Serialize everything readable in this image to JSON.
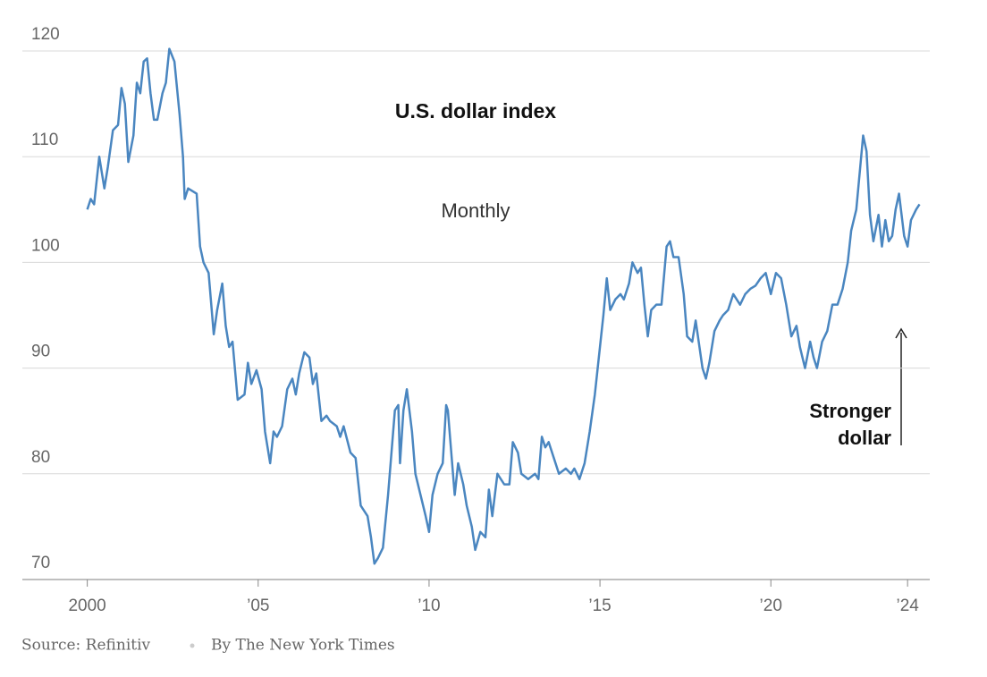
{
  "chart_data": {
    "type": "line",
    "title": "U.S. dollar index",
    "subtitle": "Monthly",
    "annotation": "Stronger\ndollar",
    "source": "Source: Refinitiv",
    "credit": "By The New York Times",
    "x": [
      2000.0,
      2000.1,
      2000.2,
      2000.35,
      2000.5,
      2000.6,
      2000.75,
      2000.9,
      2001.0,
      2001.1,
      2001.2,
      2001.35,
      2001.45,
      2001.55,
      2001.65,
      2001.75,
      2001.85,
      2001.95,
      2002.05,
      2002.2,
      2002.3,
      2002.4,
      2002.55,
      2002.7,
      2002.8,
      2002.85,
      2002.95,
      2003.2,
      2003.3,
      2003.4,
      2003.55,
      2003.7,
      2003.8,
      2003.95,
      2004.05,
      2004.15,
      2004.25,
      2004.4,
      2004.6,
      2004.7,
      2004.8,
      2004.95,
      2005.1,
      2005.2,
      2005.35,
      2005.45,
      2005.55,
      2005.7,
      2005.85,
      2006.0,
      2006.1,
      2006.2,
      2006.35,
      2006.5,
      2006.6,
      2006.7,
      2006.85,
      2007.0,
      2007.1,
      2007.3,
      2007.4,
      2007.5,
      2007.7,
      2007.85,
      2008.0,
      2008.2,
      2008.3,
      2008.4,
      2008.5,
      2008.65,
      2008.8,
      2008.9,
      2009.0,
      2009.1,
      2009.15,
      2009.25,
      2009.35,
      2009.5,
      2009.6,
      2009.75,
      2009.9,
      2010.0,
      2010.1,
      2010.25,
      2010.4,
      2010.5,
      2010.55,
      2010.65,
      2010.75,
      2010.85,
      2011.0,
      2011.1,
      2011.25,
      2011.35,
      2011.5,
      2011.65,
      2011.75,
      2011.85,
      2012.0,
      2012.2,
      2012.35,
      2012.45,
      2012.6,
      2012.7,
      2012.9,
      2013.1,
      2013.2,
      2013.3,
      2013.4,
      2013.5,
      2013.65,
      2013.8,
      2014.0,
      2014.15,
      2014.25,
      2014.4,
      2014.55,
      2014.7,
      2014.85,
      2015.0,
      2015.1,
      2015.2,
      2015.3,
      2015.45,
      2015.6,
      2015.7,
      2015.85,
      2015.95,
      2016.1,
      2016.2,
      2016.3,
      2016.4,
      2016.5,
      2016.65,
      2016.8,
      2016.95,
      2017.05,
      2017.15,
      2017.3,
      2017.45,
      2017.55,
      2017.7,
      2017.8,
      2018.0,
      2018.1,
      2018.2,
      2018.35,
      2018.5,
      2018.6,
      2018.75,
      2018.9,
      2019.1,
      2019.25,
      2019.4,
      2019.55,
      2019.7,
      2019.85,
      2020.0,
      2020.15,
      2020.3,
      2020.45,
      2020.6,
      2020.75,
      2020.85,
      2021.0,
      2021.15,
      2021.25,
      2021.35,
      2021.5,
      2021.65,
      2021.8,
      2021.95,
      2022.1,
      2022.25,
      2022.35,
      2022.5,
      2022.6,
      2022.7,
      2022.8,
      2022.9,
      2023.0,
      2023.15,
      2023.25,
      2023.35,
      2023.45,
      2023.55,
      2023.65,
      2023.75,
      2023.9,
      2024.0,
      2024.1,
      2024.25,
      2024.35
    ],
    "series": [
      {
        "name": "U.S. dollar index",
        "color": "#4a86c0",
        "values": [
          105,
          106,
          105.5,
          110,
          107,
          109,
          112.5,
          113,
          116.5,
          115,
          109.5,
          112,
          117,
          116,
          119,
          119.3,
          116,
          113.5,
          113.5,
          116,
          117,
          120.2,
          119,
          114,
          110,
          106,
          107,
          106.5,
          101.5,
          100,
          99,
          93.2,
          95.5,
          98,
          94,
          92,
          92.5,
          87,
          87.5,
          90.5,
          88.5,
          89.8,
          88,
          84,
          81,
          84,
          83.5,
          84.5,
          88,
          89,
          87.5,
          89.5,
          91.5,
          91,
          88.5,
          89.5,
          85,
          85.5,
          85,
          84.5,
          83.5,
          84.5,
          82,
          81.5,
          77,
          76,
          74,
          71.5,
          72,
          73,
          78,
          82,
          86,
          86.5,
          81,
          86,
          88,
          84,
          80,
          78,
          76,
          74.5,
          78,
          80,
          81,
          86.5,
          86,
          82,
          78,
          81,
          79,
          77,
          75,
          72.8,
          74.5,
          74,
          78.5,
          76,
          80,
          79,
          79,
          83,
          82,
          80,
          79.5,
          80,
          79.5,
          83.5,
          82.5,
          83,
          81.5,
          80,
          80.5,
          80,
          80.5,
          79.5,
          81,
          84,
          87.5,
          92,
          95,
          98.5,
          95.5,
          96.5,
          97,
          96.5,
          98,
          100,
          99,
          99.5,
          96,
          93,
          95.5,
          96,
          96,
          101.5,
          102,
          100.5,
          100.5,
          97,
          93,
          92.5,
          94.5,
          90,
          89,
          90.5,
          93.5,
          94.5,
          95,
          95.5,
          97,
          96,
          97,
          97.5,
          97.8,
          98.5,
          99,
          97,
          99,
          98.5,
          96,
          93,
          94,
          92,
          90,
          92.5,
          91,
          90,
          92.5,
          93.5,
          96,
          96,
          97.5,
          100,
          103,
          105,
          108.5,
          112,
          110.5,
          104.5,
          102,
          104.5,
          101.5,
          104,
          102,
          102.5,
          105,
          106.5,
          102.5,
          101.5,
          104,
          105,
          105.5
        ]
      }
    ],
    "xlim": [
      1998.1,
      2024.65
    ],
    "xticks": [
      2000,
      {
        "value": 2005,
        "label": "’05"
      },
      {
        "value": 2010,
        "label": "’10"
      },
      {
        "value": 2015,
        "label": "’15"
      },
      {
        "value": 2020,
        "label": "’20"
      },
      {
        "value": 2024,
        "label": "’24"
      }
    ],
    "ylim": [
      70,
      120
    ],
    "yticks": [
      70,
      80,
      90,
      100,
      110,
      120
    ],
    "grid": true
  }
}
